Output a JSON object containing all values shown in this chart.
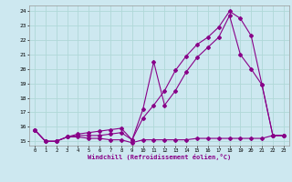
{
  "xlabel": "Windchill (Refroidissement éolien,°C)",
  "background_color": "#cde8f0",
  "grid_color": "#b0d8d8",
  "line_color": "#880088",
  "x_data": [
    0,
    1,
    2,
    3,
    4,
    5,
    6,
    7,
    8,
    9,
    10,
    11,
    12,
    13,
    14,
    15,
    16,
    17,
    18,
    19,
    20,
    21,
    22,
    23
  ],
  "series1": [
    15.8,
    15.0,
    15.0,
    15.3,
    15.3,
    15.2,
    15.2,
    15.1,
    15.1,
    14.9,
    15.1,
    15.1,
    15.1,
    15.1,
    15.1,
    15.2,
    15.2,
    15.2,
    15.2,
    15.2,
    15.2,
    15.2,
    15.4,
    15.4
  ],
  "series2": [
    15.8,
    15.0,
    15.0,
    15.3,
    15.4,
    15.4,
    15.4,
    15.5,
    15.6,
    15.1,
    16.6,
    17.5,
    18.5,
    19.9,
    20.9,
    21.7,
    22.2,
    22.9,
    24.0,
    23.5,
    22.3,
    18.9,
    15.4,
    15.4
  ],
  "series3": [
    15.8,
    15.0,
    15.0,
    15.3,
    15.5,
    15.6,
    15.7,
    15.8,
    15.9,
    15.1,
    17.2,
    20.5,
    17.5,
    18.5,
    19.8,
    20.8,
    21.5,
    22.2,
    23.7,
    21.0,
    20.0,
    18.9,
    15.4,
    15.4
  ],
  "ylim": [
    14.7,
    24.4
  ],
  "xlim": [
    -0.5,
    23.5
  ],
  "yticks": [
    15,
    16,
    17,
    18,
    19,
    20,
    21,
    22,
    23,
    24
  ],
  "xticks": [
    0,
    1,
    2,
    3,
    4,
    5,
    6,
    7,
    8,
    9,
    10,
    11,
    12,
    13,
    14,
    15,
    16,
    17,
    18,
    19,
    20,
    21,
    22,
    23
  ]
}
